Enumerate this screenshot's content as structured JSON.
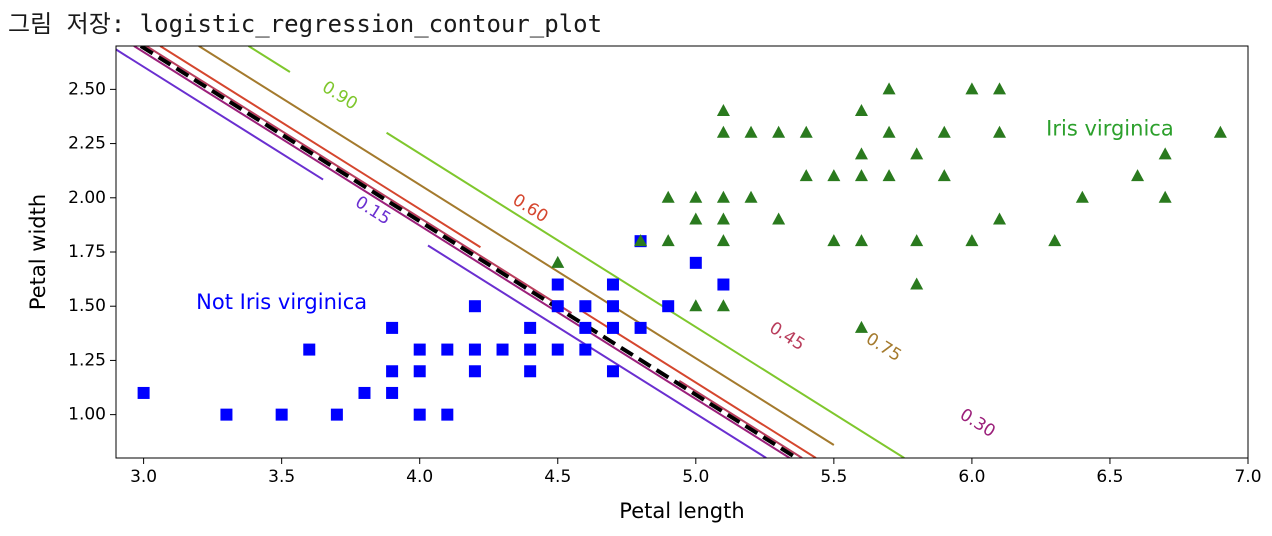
{
  "caption": "그림 저장: logistic_regression_contour_plot",
  "chart_data": {
    "type": "scatter",
    "xlabel": "Petal length",
    "ylabel": "Petal width",
    "xlim": [
      2.9,
      7.0
    ],
    "ylim": [
      0.8,
      2.7
    ],
    "x_ticks": [
      3.0,
      3.5,
      4.0,
      4.5,
      5.0,
      5.5,
      6.0,
      6.5,
      7.0
    ],
    "x_tick_labels": [
      "3.0",
      "3.5",
      "4.0",
      "4.5",
      "5.0",
      "5.5",
      "6.0",
      "6.5",
      "7.0"
    ],
    "y_ticks": [
      1.0,
      1.25,
      1.5,
      1.75,
      2.0,
      2.25,
      2.5
    ],
    "y_tick_labels": [
      "1.00",
      "1.25",
      "1.50",
      "1.75",
      "2.00",
      "2.25",
      "2.50"
    ],
    "grid": false,
    "annotations": [
      {
        "text": "Not Iris virginica",
        "x": 3.5,
        "y": 1.52,
        "color": "#0000ff"
      },
      {
        "text": "Iris virginica",
        "x": 6.5,
        "y": 2.32,
        "color": "#2ca02c"
      }
    ],
    "series": [
      {
        "name": "Not Iris virginica",
        "marker": "square",
        "color": "#0000ff",
        "points": [
          [
            3.0,
            1.1
          ],
          [
            3.3,
            1.0
          ],
          [
            3.5,
            1.0
          ],
          [
            3.6,
            1.3
          ],
          [
            3.7,
            1.0
          ],
          [
            3.8,
            1.1
          ],
          [
            3.9,
            1.4
          ],
          [
            3.9,
            1.2
          ],
          [
            3.9,
            1.1
          ],
          [
            4.0,
            1.3
          ],
          [
            4.0,
            1.2
          ],
          [
            4.0,
            1.0
          ],
          [
            4.1,
            1.3
          ],
          [
            4.1,
            1.0
          ],
          [
            4.2,
            1.5
          ],
          [
            4.2,
            1.3
          ],
          [
            4.2,
            1.2
          ],
          [
            4.3,
            1.3
          ],
          [
            4.4,
            1.4
          ],
          [
            4.4,
            1.3
          ],
          [
            4.4,
            1.2
          ],
          [
            4.5,
            1.6
          ],
          [
            4.5,
            1.5
          ],
          [
            4.5,
            1.3
          ],
          [
            4.6,
            1.5
          ],
          [
            4.6,
            1.4
          ],
          [
            4.6,
            1.3
          ],
          [
            4.7,
            1.6
          ],
          [
            4.7,
            1.5
          ],
          [
            4.7,
            1.4
          ],
          [
            4.7,
            1.2
          ],
          [
            4.8,
            1.8
          ],
          [
            4.8,
            1.4
          ],
          [
            4.9,
            1.5
          ],
          [
            5.0,
            1.7
          ],
          [
            5.1,
            1.6
          ]
        ]
      },
      {
        "name": "Iris virginica",
        "marker": "triangle",
        "color": "#2a7a1e",
        "points": [
          [
            4.5,
            1.7
          ],
          [
            4.8,
            1.8
          ],
          [
            4.9,
            2.0
          ],
          [
            4.9,
            1.8
          ],
          [
            5.0,
            2.0
          ],
          [
            5.0,
            1.9
          ],
          [
            5.0,
            1.5
          ],
          [
            5.1,
            2.4
          ],
          [
            5.1,
            2.3
          ],
          [
            5.1,
            2.0
          ],
          [
            5.1,
            1.9
          ],
          [
            5.1,
            1.8
          ],
          [
            5.1,
            1.5
          ],
          [
            5.2,
            2.3
          ],
          [
            5.2,
            2.0
          ],
          [
            5.3,
            2.3
          ],
          [
            5.3,
            1.9
          ],
          [
            5.4,
            2.3
          ],
          [
            5.4,
            2.1
          ],
          [
            5.5,
            2.1
          ],
          [
            5.5,
            1.8
          ],
          [
            5.6,
            2.4
          ],
          [
            5.6,
            2.2
          ],
          [
            5.6,
            2.1
          ],
          [
            5.6,
            1.8
          ],
          [
            5.6,
            1.4
          ],
          [
            5.7,
            2.5
          ],
          [
            5.7,
            2.3
          ],
          [
            5.7,
            2.1
          ],
          [
            5.8,
            2.2
          ],
          [
            5.8,
            1.8
          ],
          [
            5.8,
            1.6
          ],
          [
            5.9,
            2.3
          ],
          [
            5.9,
            2.1
          ],
          [
            6.0,
            2.5
          ],
          [
            6.0,
            1.8
          ],
          [
            6.1,
            2.5
          ],
          [
            6.1,
            2.3
          ],
          [
            6.1,
            1.9
          ],
          [
            6.3,
            1.8
          ],
          [
            6.4,
            2.0
          ],
          [
            6.6,
            2.1
          ],
          [
            6.7,
            2.2
          ],
          [
            6.7,
            2.0
          ],
          [
            6.9,
            2.3
          ]
        ]
      }
    ],
    "contours": [
      {
        "level": "0.15",
        "color": "#6a2fd0",
        "x_at_top": 2.88,
        "slope": -0.8,
        "gaps": [
          [
            3.65,
            4.03
          ]
        ],
        "label_at": [
          3.83,
          1.94
        ]
      },
      {
        "level": "0.30",
        "color": "#9b1f7a",
        "x_at_top": 2.965,
        "slope": -0.8,
        "gaps": [
          [
            5.84,
            6.22
          ]
        ],
        "label_at": [
          6.02,
          0.96
        ]
      },
      {
        "level": "0.45",
        "color": "#b93d5c",
        "x_at_top": 3.01,
        "slope": -0.8,
        "gaps": [
          [
            4.55,
            4.94
          ]
        ],
        "label_at": [
          5.33,
          1.36
        ],
        "partial": true
      },
      {
        "level": "0.60",
        "color": "#d5462e",
        "x_at_top": 3.06,
        "slope": -0.8,
        "gaps": [
          [
            4.22,
            4.58
          ]
        ],
        "label_at": [
          4.4,
          1.95
        ]
      },
      {
        "level": "0.75",
        "color": "#a47a2d",
        "x_at_top": 3.2,
        "slope": -0.8,
        "gaps": [
          [
            5.5,
            5.85
          ]
        ],
        "label_at": [
          5.68,
          1.31
        ]
      },
      {
        "level": "0.90",
        "color": "#7fc72d",
        "x_at_top": 3.38,
        "slope": -0.8,
        "gaps": [
          [
            3.53,
            3.88
          ]
        ],
        "label_at": [
          3.71,
          2.47
        ]
      }
    ],
    "decision_boundary": {
      "style": "dashed",
      "color": "#000000",
      "x_at_top": 2.99,
      "slope": -0.8
    }
  }
}
